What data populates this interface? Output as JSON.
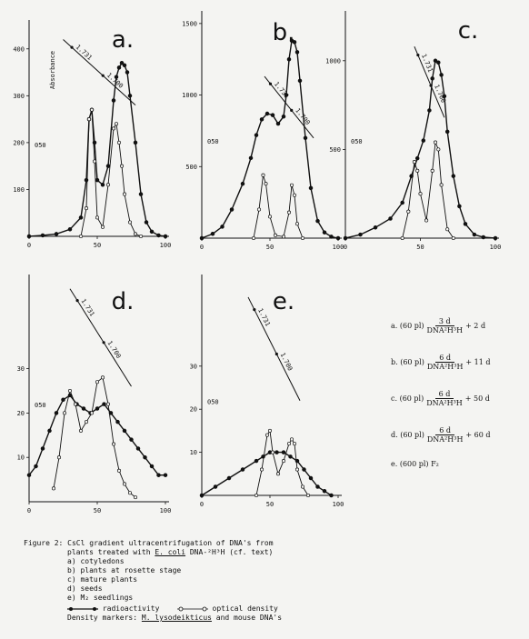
{
  "figure": {
    "ylabel": "Absorbance",
    "panels_note": "five CsCl gradient panels"
  },
  "legend": {
    "a": {
      "prefix": "a.  (60 pl)",
      "num": "3 d",
      "den": "DNA²H³H",
      "suffix": "+  2 d"
    },
    "b": {
      "prefix": "b.  (60 pl)",
      "num": "6 d",
      "den": "DNA²H³H",
      "suffix": "+ 11 d"
    },
    "c": {
      "prefix": "c.  (60 pl)",
      "num": "6 d",
      "den": "DNA²H³H",
      "suffix": "+ 50 d"
    },
    "d": {
      "prefix": "d.  (60 pl)",
      "num": "6 d",
      "den": "DNA²H³H",
      "suffix": "+ 60 d"
    },
    "e": {
      "prefix": "e.  (600 pl) F₂"
    }
  },
  "caption": {
    "line1": "Figure 2: CsCl gradient ultracentrifugation of DNA's from",
    "line2_pre": "plants treated with ",
    "line2_u": "E. coli",
    "line2_post": " DNA-²H³H (cf. text)",
    "items": [
      "a)  cotyledons",
      "b)  plants at rosette stage",
      "c)  mature plants",
      "d)  seeds",
      "e)  M₂ seedlings"
    ],
    "key_radio": "radioactivity",
    "key_od": "optical density",
    "markers_pre": "Density markers: ",
    "markers_u": "M. lysodeikticus",
    "markers_post": " and mouse DNA's"
  },
  "chart_data": [
    {
      "type": "line",
      "panel": "a.",
      "xlim": [
        0,
        100
      ],
      "xticks": [
        "0",
        "50",
        "100"
      ],
      "yticks": [
        "100",
        "200",
        "300",
        "400"
      ],
      "ylim": [
        0,
        450
      ],
      "od_label": "050",
      "markers": [
        "1.731",
        "1.700"
      ],
      "series": [
        {
          "name": "radioactivity",
          "x": [
            0,
            10,
            20,
            30,
            38,
            42,
            44,
            46,
            48,
            50,
            54,
            58,
            62,
            64,
            66,
            68,
            70,
            72,
            74,
            78,
            82,
            86,
            90,
            95,
            100
          ],
          "y": [
            0,
            2,
            5,
            15,
            40,
            120,
            250,
            270,
            200,
            120,
            110,
            150,
            290,
            340,
            360,
            370,
            365,
            350,
            300,
            200,
            90,
            30,
            10,
            2,
            0
          ]
        },
        {
          "name": "optical density",
          "x": [
            38,
            42,
            44,
            46,
            48,
            50,
            54,
            58,
            62,
            64,
            66,
            68,
            70,
            74,
            78,
            82
          ],
          "y": [
            0,
            60,
            250,
            270,
            160,
            40,
            20,
            110,
            230,
            240,
            200,
            150,
            90,
            30,
            5,
            0
          ]
        }
      ],
      "density_line": {
        "x": [
          25,
          78
        ],
        "y": [
          420,
          280
        ]
      }
    },
    {
      "type": "line",
      "panel": "b.",
      "xlim": [
        0,
        100
      ],
      "xticks": [
        "0",
        "50",
        "100"
      ],
      "yticks": [
        "500",
        "1000",
        "1500"
      ],
      "ylim": [
        0,
        1550
      ],
      "od_label": "050",
      "markers": [
        "1.731",
        "1.700"
      ],
      "series": [
        {
          "name": "radioactivity",
          "x": [
            0,
            8,
            15,
            22,
            30,
            36,
            40,
            44,
            48,
            52,
            56,
            60,
            62,
            64,
            66,
            68,
            70,
            72,
            76,
            80,
            85,
            90,
            95,
            100
          ],
          "y": [
            0,
            30,
            80,
            200,
            380,
            560,
            720,
            830,
            870,
            860,
            800,
            850,
            1000,
            1250,
            1380,
            1370,
            1300,
            1100,
            700,
            350,
            120,
            40,
            10,
            0
          ]
        },
        {
          "name": "optical density",
          "x": [
            38,
            42,
            45,
            47,
            50,
            54,
            60,
            64,
            66,
            68,
            70,
            74
          ],
          "y": [
            0,
            200,
            440,
            380,
            150,
            20,
            10,
            180,
            370,
            300,
            100,
            0
          ]
        }
      ],
      "density_line": {
        "x": [
          46,
          82
        ],
        "y": [
          1130,
          700
        ]
      }
    },
    {
      "type": "line",
      "panel": "c.",
      "xlim": [
        0,
        100
      ],
      "xticks": [
        "0",
        "50",
        "100"
      ],
      "yticks": [
        "500",
        "1000"
      ],
      "ylim": [
        0,
        1250
      ],
      "od_label": "050",
      "markers": [
        "1.731",
        "1.700"
      ],
      "series": [
        {
          "name": "radioactivity",
          "x": [
            0,
            10,
            20,
            30,
            38,
            44,
            48,
            52,
            56,
            58,
            60,
            62,
            64,
            66,
            68,
            72,
            76,
            80,
            86,
            92,
            100
          ],
          "y": [
            0,
            20,
            60,
            110,
            200,
            350,
            450,
            550,
            720,
            900,
            1000,
            990,
            920,
            800,
            600,
            350,
            180,
            80,
            20,
            5,
            0
          ]
        },
        {
          "name": "optical density",
          "x": [
            38,
            42,
            46,
            48,
            50,
            54,
            58,
            60,
            62,
            64,
            68,
            72
          ],
          "y": [
            0,
            150,
            430,
            380,
            250,
            100,
            380,
            540,
            500,
            300,
            50,
            0
          ]
        }
      ],
      "density_line": {
        "x": [
          46,
          66
        ],
        "y": [
          1080,
          680
        ]
      }
    },
    {
      "type": "line",
      "panel": "d.",
      "xlim": [
        0,
        100
      ],
      "xticks": [
        "0",
        "50",
        "100"
      ],
      "yticks": [
        "10",
        "20",
        "30"
      ],
      "ylim": [
        0,
        50
      ],
      "od_label": "050",
      "markers": [
        "1.731",
        "1.700"
      ],
      "series": [
        {
          "name": "radioactivity",
          "x": [
            0,
            5,
            10,
            15,
            20,
            25,
            30,
            35,
            40,
            45,
            50,
            55,
            60,
            65,
            70,
            75,
            80,
            85,
            90,
            95,
            100
          ],
          "y": [
            6,
            8,
            12,
            16,
            20,
            23,
            24,
            22,
            21,
            20,
            21,
            22,
            20,
            18,
            16,
            14,
            12,
            10,
            8,
            6,
            6
          ]
        },
        {
          "name": "optical density",
          "x": [
            18,
            22,
            26,
            30,
            34,
            38,
            42,
            46,
            50,
            54,
            58,
            62,
            66,
            70,
            74,
            78
          ],
          "y": [
            3,
            10,
            20,
            25,
            22,
            16,
            18,
            20,
            27,
            28,
            22,
            13,
            7,
            4,
            2,
            1
          ]
        }
      ],
      "density_line": {
        "x": [
          30,
          75
        ],
        "y": [
          48,
          26
        ]
      }
    },
    {
      "type": "line",
      "panel": "e.",
      "xlim": [
        0,
        100
      ],
      "xticks": [
        "0",
        "50",
        "100"
      ],
      "yticks": [
        "10",
        "20",
        "30"
      ],
      "ylim": [
        0,
        50
      ],
      "od_label": "050",
      "markers": [
        "1.731",
        "1.700"
      ],
      "series": [
        {
          "name": "radioactivity",
          "x": [
            0,
            10,
            20,
            30,
            40,
            45,
            50,
            55,
            60,
            65,
            70,
            75,
            80,
            85,
            90,
            95
          ],
          "y": [
            0,
            2,
            4,
            6,
            8,
            9,
            10,
            10,
            10,
            9,
            8,
            6,
            4,
            2,
            1,
            0
          ]
        },
        {
          "name": "optical density",
          "x": [
            40,
            44,
            48,
            50,
            52,
            56,
            60,
            64,
            66,
            68,
            70,
            74,
            78
          ],
          "y": [
            0,
            6,
            14,
            15,
            10,
            5,
            8,
            12,
            13,
            12,
            6,
            2,
            0
          ]
        }
      ],
      "density_line": {
        "x": [
          34,
          72
        ],
        "y": [
          46,
          22
        ]
      }
    }
  ]
}
